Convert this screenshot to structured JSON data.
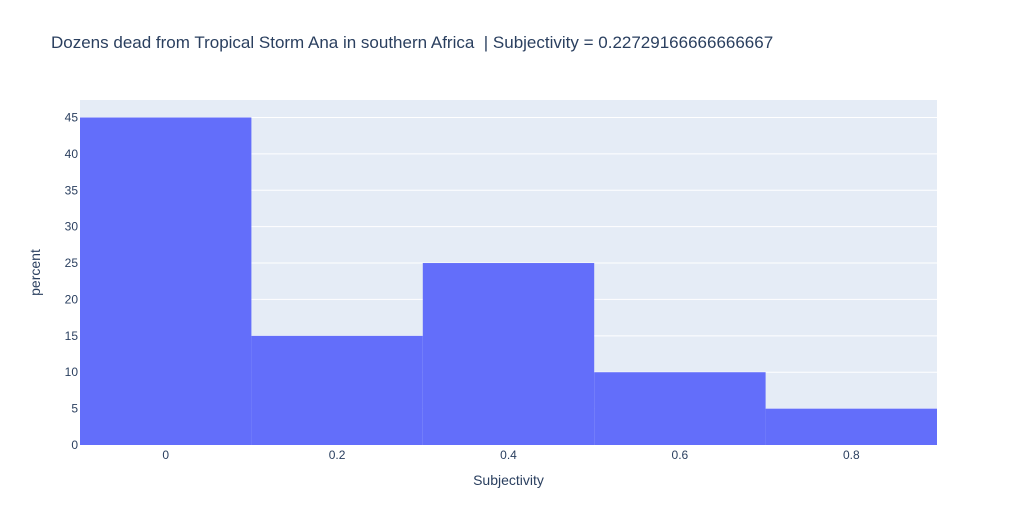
{
  "chart_data": {
    "type": "bar",
    "title": "Dozens dead from Tropical Storm Ana in southern Africa  | Subjectivity = 0.22729166666666667",
    "xlabel": "Subjectivity",
    "ylabel": "percent",
    "bins": [
      {
        "x0": -0.1,
        "x1": 0.1,
        "value": 45
      },
      {
        "x0": 0.1,
        "x1": 0.3,
        "value": 15
      },
      {
        "x0": 0.3,
        "x1": 0.5,
        "value": 25
      },
      {
        "x0": 0.5,
        "x1": 0.7,
        "value": 10
      },
      {
        "x0": 0.7,
        "x1": 0.9,
        "value": 5
      }
    ],
    "xlim": [
      -0.1,
      0.9
    ],
    "ylim": [
      0,
      47.4
    ],
    "x_ticks": [
      0,
      0.2,
      0.4,
      0.6,
      0.8
    ],
    "x_tick_labels": [
      "0",
      "0.2",
      "0.4",
      "0.6",
      "0.8"
    ],
    "y_ticks": [
      0,
      5,
      10,
      15,
      20,
      25,
      30,
      35,
      40,
      45
    ],
    "y_tick_labels": [
      "0",
      "5",
      "10",
      "15",
      "20",
      "25",
      "30",
      "35",
      "40",
      "45"
    ],
    "grid": true,
    "colors": {
      "bar": "#636efa",
      "plot_bg": "#e5ecf6",
      "grid": "#ffffff",
      "text": "#2a3f5f"
    }
  }
}
